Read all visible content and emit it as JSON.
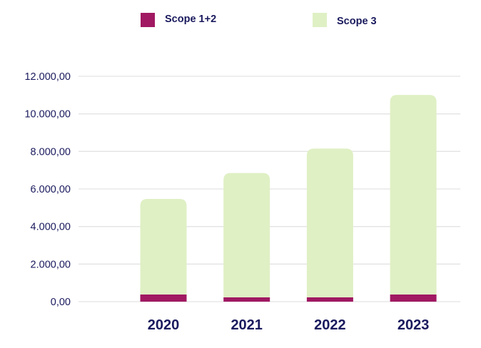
{
  "chart_data": {
    "type": "bar",
    "stacked": true,
    "categories": [
      "2020",
      "2021",
      "2022",
      "2023"
    ],
    "series": [
      {
        "name": "Scope 1+2",
        "color": "#a01962",
        "values": [
          380,
          230,
          230,
          380
        ]
      },
      {
        "name": "Scope 3",
        "color": "#dff0c4",
        "values": [
          5090,
          6620,
          7920,
          10630
        ]
      }
    ],
    "ylim": [
      0,
      12000
    ],
    "yticks": [
      0,
      2000,
      4000,
      6000,
      8000,
      10000,
      12000
    ],
    "ytick_labels": [
      "0,00",
      "2.000,00",
      "4.000,00",
      "6.000,00",
      "8.000,00",
      "10.000,00",
      "12.000,00"
    ],
    "grid": true,
    "legend": "top",
    "text_color": "#1a1a5e"
  }
}
